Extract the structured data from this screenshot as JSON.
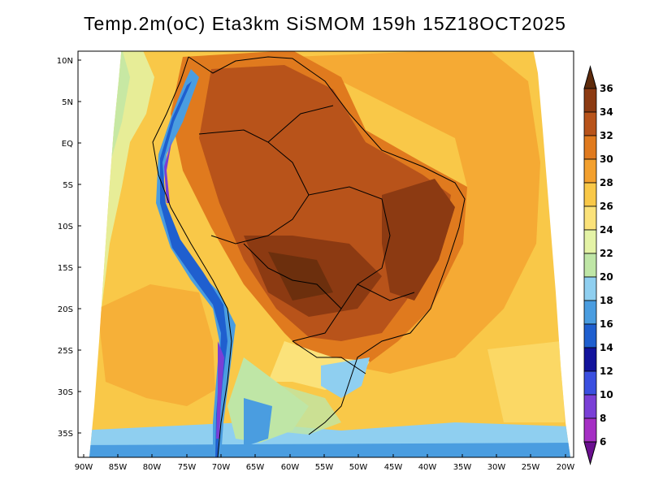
{
  "title": "Temp.2m(oC) Eta3km SiSMOM 159h 15Z18OCT2025",
  "lat_labels": [
    "10N",
    "5N",
    "EQ",
    "5S",
    "10S",
    "15S",
    "20S",
    "25S",
    "30S",
    "35S"
  ],
  "lon_labels": [
    "90W",
    "85W",
    "80W",
    "75W",
    "70W",
    "65W",
    "60W",
    "55W",
    "50W",
    "45W",
    "40W",
    "35W",
    "30W",
    "25W",
    "20W"
  ],
  "colorbar": {
    "labels": [
      "36",
      "34",
      "32",
      "30",
      "28",
      "26",
      "24",
      "22",
      "20",
      "18",
      "16",
      "14",
      "12",
      "10",
      "8",
      "6"
    ],
    "colors": [
      "#5e2b0c",
      "#8c3a12",
      "#b8531a",
      "#e07a1e",
      "#f3a02e",
      "#f9c848",
      "#fbe27a",
      "#e4f3a6",
      "#bfe6a6",
      "#8fcff0",
      "#4a9de0",
      "#1f5fcf",
      "#12139c",
      "#3a4fe0",
      "#7a3fd6",
      "#a52fc4",
      "#6a0f8f"
    ]
  },
  "legend_items": [
    {
      "name": "colorbar-top-arrow",
      "interactable": false
    },
    {
      "name": "colorbar-bottom-arrow",
      "interactable": false
    }
  ]
}
